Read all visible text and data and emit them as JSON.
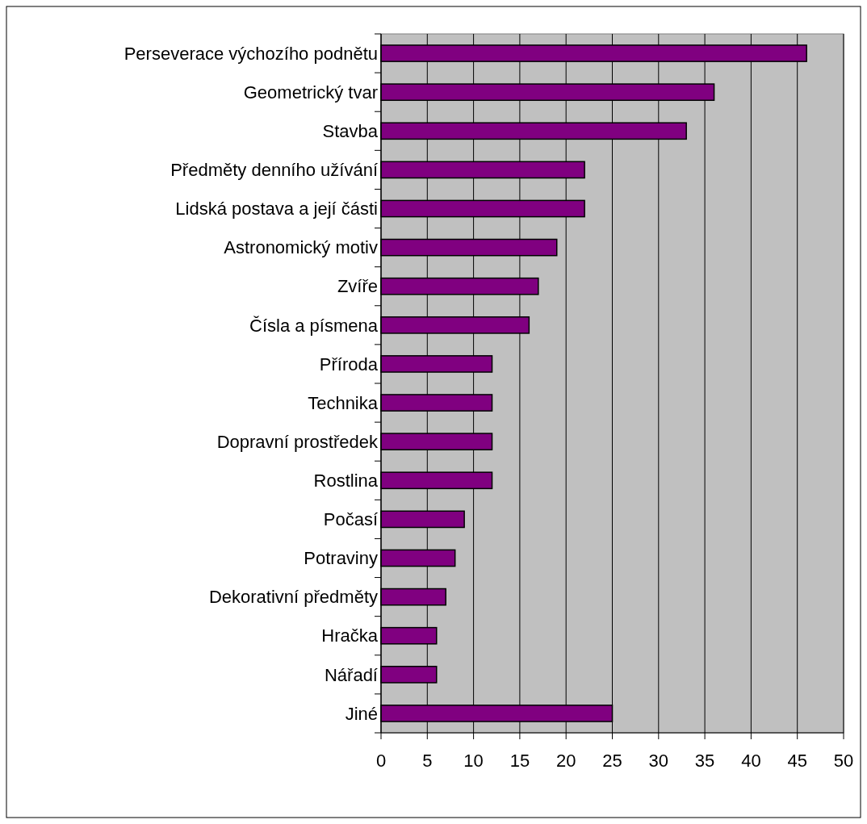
{
  "chart_data": {
    "type": "bar",
    "orientation": "horizontal",
    "categories": [
      "Perseverace výchozího podnětu",
      "Geometrický tvar",
      "Stavba",
      "Předměty denního užívání",
      "Lidská postava a její části",
      "Astronomický motiv",
      "Zvíře",
      "Čísla a písmena",
      "Příroda",
      "Technika",
      "Dopravní prostředek",
      "Rostlina",
      "Počasí",
      "Potraviny",
      "Dekorativní předměty",
      "Hračka",
      "Nářadí",
      "Jiné"
    ],
    "values": [
      46,
      36,
      33,
      22,
      22,
      19,
      17,
      16,
      12,
      12,
      12,
      12,
      9,
      8,
      7,
      6,
      6,
      25
    ],
    "color": "#800080",
    "xlim": [
      0,
      50
    ],
    "xticks": [
      0,
      5,
      10,
      15,
      20,
      25,
      30,
      35,
      40,
      45,
      50
    ],
    "grid": "x"
  }
}
